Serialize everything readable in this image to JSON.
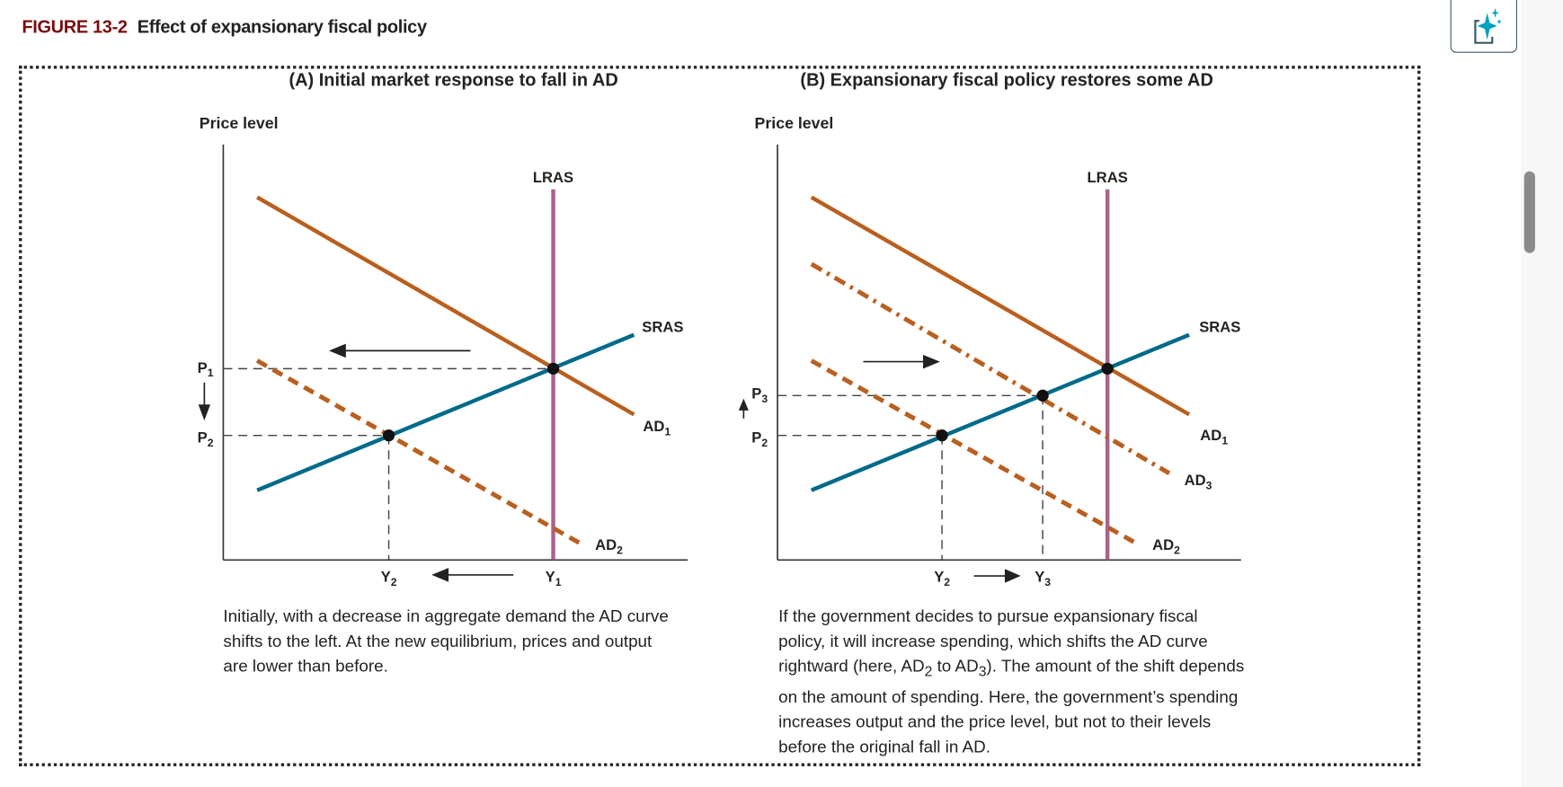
{
  "figure": {
    "number": "FIGURE 13-2",
    "title": "Effect of expansionary fiscal policy"
  },
  "panel_a": {
    "title": "(A) Initial market response to fall in AD",
    "y_axis_label": "Price level",
    "labels": {
      "lras": "LRAS",
      "sras": "SRAS",
      "ad1": "AD",
      "ad1_sub": "1",
      "ad2": "AD",
      "ad2_sub": "2",
      "p1": "P",
      "p1_sub": "1",
      "p2": "P",
      "p2_sub": "2",
      "y1": "Y",
      "y1_sub": "1",
      "y2": "Y",
      "y2_sub": "2"
    },
    "caption": "Initially, with a decrease in aggregate demand the AD curve shifts to the left. At the new equilibrium, prices and output are lower than before."
  },
  "panel_b": {
    "title": "(B) Expansionary fiscal policy restores some AD",
    "y_axis_label": "Price level",
    "labels": {
      "lras": "LRAS",
      "sras": "SRAS",
      "ad1": "AD",
      "ad1_sub": "1",
      "ad2": "AD",
      "ad2_sub": "2",
      "ad3": "AD",
      "ad3_sub": "3",
      "p2": "P",
      "p2_sub": "2",
      "p3": "P",
      "p3_sub": "3",
      "y2": "Y",
      "y2_sub": "2",
      "y3": "Y",
      "y3_sub": "3"
    },
    "caption_parts": [
      "If the government decides to pursue expansionary fiscal policy, it will increase spending, which shifts the AD curve rightward (here, AD",
      "2",
      " to AD",
      "3",
      "). The amount of the shift depends on the amount of spending. Here, the government’s spending increases output and the price level, but not to their levels before the original fall in AD."
    ]
  },
  "colors": {
    "ad": "#b95f1f",
    "sras": "#006a89",
    "lras": "#a9628f",
    "figure_number": "#7a0c0c",
    "ai_icon": "#00a3c4"
  },
  "toolbar": {
    "ai_button_icon": "sparkle-document-icon"
  }
}
